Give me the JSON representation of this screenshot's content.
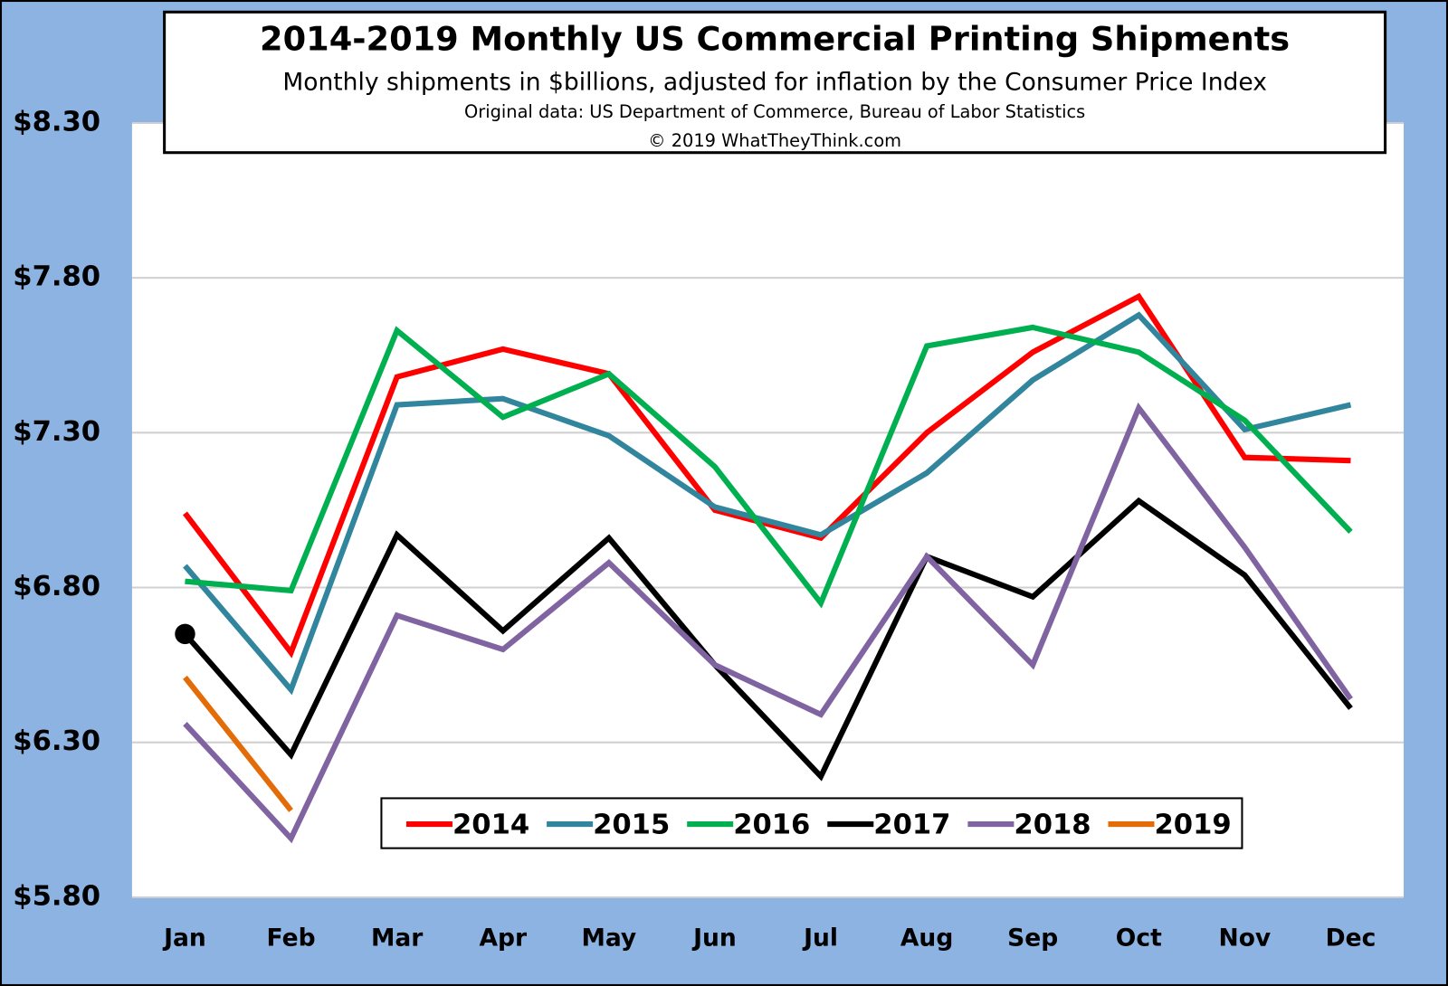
{
  "chart_data": {
    "type": "line",
    "title": "2014-2019 Monthly US Commercial Printing Shipments",
    "subtitle": "Monthly shipments in $billions, adjusted for inflation by the Consumer Price Index",
    "source": "Original data: US Department of Commerce, Bureau of Labor Statistics",
    "copyright": "© 2019 WhatTheyThink.com",
    "categories": [
      "Jan",
      "Feb",
      "Mar",
      "Apr",
      "May",
      "Jun",
      "Jul",
      "Aug",
      "Sep",
      "Oct",
      "Nov",
      "Dec"
    ],
    "series": [
      {
        "name": "2014",
        "color": "#ff0000",
        "values": [
          7.04,
          6.59,
          7.48,
          7.57,
          7.49,
          7.05,
          6.96,
          7.3,
          7.56,
          7.74,
          7.22,
          7.21
        ]
      },
      {
        "name": "2015",
        "color": "#31859c",
        "values": [
          6.87,
          6.47,
          7.39,
          7.41,
          7.29,
          7.06,
          6.97,
          7.17,
          7.47,
          7.68,
          7.31,
          7.39
        ]
      },
      {
        "name": "2016",
        "color": "#00b050",
        "values": [
          6.82,
          6.79,
          7.63,
          7.35,
          7.49,
          7.19,
          6.75,
          7.58,
          7.64,
          7.56,
          7.34,
          6.98
        ]
      },
      {
        "name": "2017",
        "color": "#000000",
        "marker": "circle",
        "values": [
          6.65,
          6.26,
          6.97,
          6.66,
          6.96,
          6.55,
          6.19,
          6.9,
          6.77,
          7.08,
          6.84,
          6.41
        ]
      },
      {
        "name": "2018",
        "color": "#8064a2",
        "values": [
          6.36,
          5.99,
          6.71,
          6.6,
          6.88,
          6.55,
          6.39,
          6.9,
          6.55,
          7.38,
          6.93,
          6.44
        ]
      },
      {
        "name": "2019",
        "color": "#e36c09",
        "values": [
          6.51,
          6.08,
          null,
          null,
          null,
          null,
          null,
          null,
          null,
          null,
          null,
          null
        ]
      }
    ],
    "ylim": [
      5.8,
      8.3
    ],
    "yticks": [
      {
        "value": 5.8,
        "label": "$5.80"
      },
      {
        "value": 6.3,
        "label": "$6.30"
      },
      {
        "value": 6.8,
        "label": "$6.80"
      },
      {
        "value": 7.3,
        "label": "$7.30"
      },
      {
        "value": 7.8,
        "label": "$7.80"
      },
      {
        "value": 8.3,
        "label": "$8.30"
      }
    ],
    "grid": true,
    "legend": "bottom"
  }
}
